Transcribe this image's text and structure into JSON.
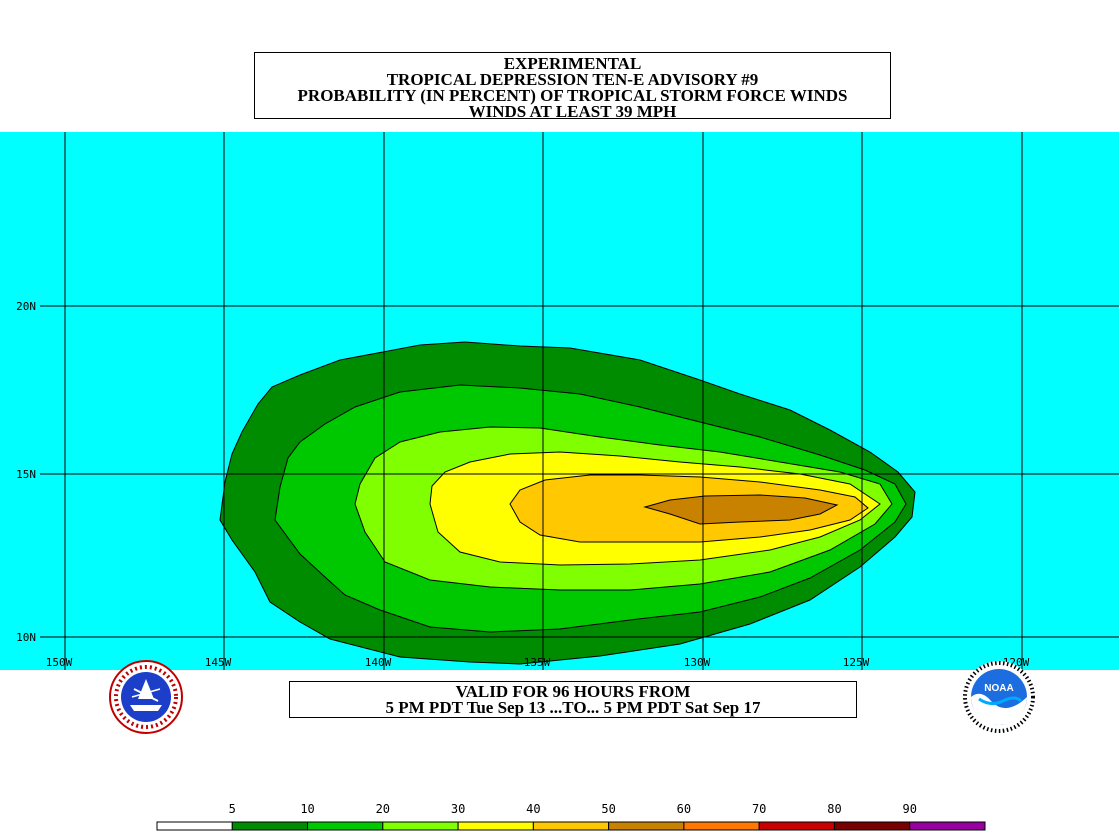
{
  "title": {
    "line1": "EXPERIMENTAL",
    "line2": "TROPICAL DEPRESSION TEN-E ADVISORY #9",
    "line3": "PROBABILITY (IN PERCENT) OF TROPICAL STORM FORCE WINDS",
    "line4": "WINDS AT LEAST 39 MPH"
  },
  "valid": {
    "line1": "VALID FOR 96 HOURS FROM",
    "line2": "5 PM PDT Tue Sep 13 ...TO... 5 PM PDT Sat Sep 17"
  },
  "map": {
    "background": "#00ffff",
    "lon_labels": [
      "150W",
      "145W",
      "140W",
      "135W",
      "130W",
      "125W",
      "120W"
    ],
    "lat_labels": [
      "20N",
      "15N",
      "10N"
    ]
  },
  "logos": {
    "left_icon": "nws-logo",
    "right_icon": "noaa-logo",
    "right_text": "NOAA"
  },
  "legend": {
    "labels": [
      "5",
      "10",
      "20",
      "30",
      "40",
      "50",
      "60",
      "70",
      "80",
      "90"
    ],
    "colors": [
      "#ffffff",
      "#008c00",
      "#00c800",
      "#7fff00",
      "#ffff00",
      "#ffc800",
      "#c88200",
      "#ff7800",
      "#c80000",
      "#780000",
      "#9600a0"
    ]
  },
  "contour_colors": {
    "p5": "#008c00",
    "p10": "#00c800",
    "p20": "#7fff00",
    "p30": "#ffff00",
    "p40": "#ffc800",
    "p50": "#c88200"
  }
}
